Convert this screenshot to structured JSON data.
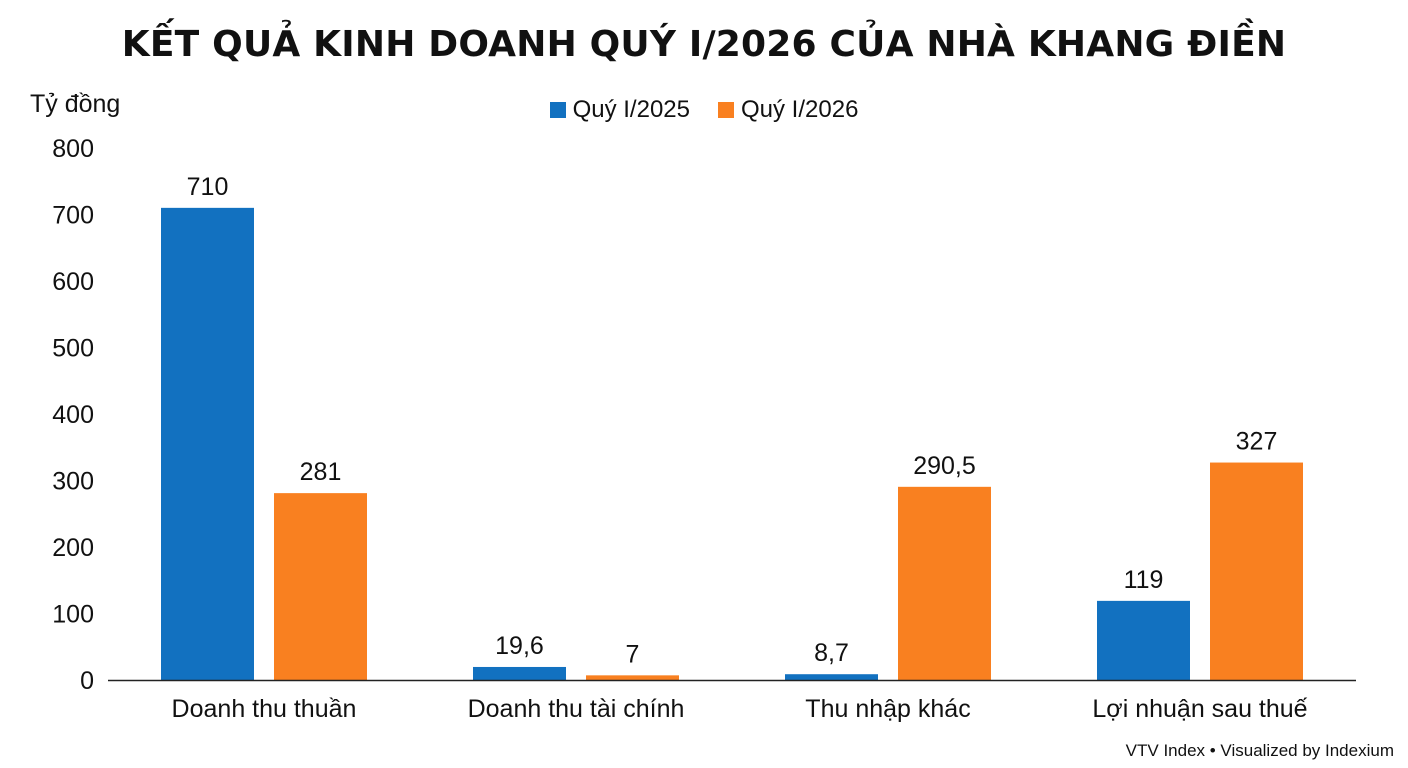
{
  "title": "KẾT QUẢ KINH DOANH QUÝ I/2026 CỦA NHÀ KHANG ĐIỀN",
  "unit": "Tỷ đồng",
  "footer": "VTV Index • Visualized by Indexium",
  "colors": {
    "series_1": "#1271c0",
    "series_2": "#f98020",
    "axis": "#222222"
  },
  "chart_data": {
    "type": "bar",
    "title": "KẾT QUẢ KINH DOANH QUÝ I/2026 CỦA NHÀ KHANG ĐIỀN",
    "ylabel": "Tỷ đồng",
    "xlabel": "",
    "ylim": [
      0,
      800
    ],
    "yticks": [
      0,
      100,
      200,
      300,
      400,
      500,
      600,
      700,
      800
    ],
    "grid": false,
    "legend": "top-center",
    "categories": [
      "Doanh thu thuần",
      "Doanh thu tài chính",
      "Thu nhập khác",
      "Lợi nhuận sau thuế"
    ],
    "series": [
      {
        "name": "Quý I/2025",
        "values": [
          710,
          19.6,
          8.7,
          119
        ],
        "labels": [
          "710",
          "19,6",
          "8,7",
          "119"
        ]
      },
      {
        "name": "Quý I/2026",
        "values": [
          281,
          7,
          290.5,
          327
        ],
        "labels": [
          "281",
          "7",
          "290,5",
          "327"
        ]
      }
    ]
  }
}
